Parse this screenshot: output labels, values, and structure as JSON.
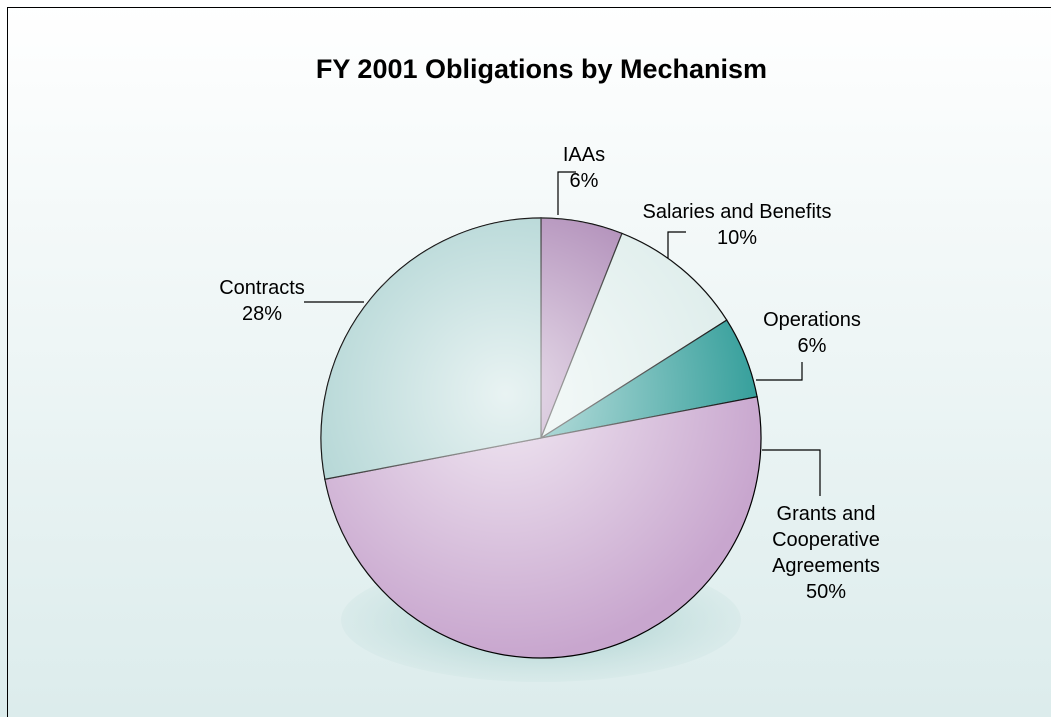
{
  "chart_data": {
    "type": "pie",
    "title": "FY 2001 Obligations by Mechanism",
    "categories": [
      "IAAs",
      "Salaries and Benefits",
      "Operations",
      "Grants and Cooperative Agreements",
      "Contracts"
    ],
    "values": [
      6,
      10,
      6,
      50,
      28
    ],
    "value_labels": [
      "6%",
      "10%",
      "6%",
      "50%",
      "28%"
    ],
    "colors": [
      "#a47cae",
      "#dcecea",
      "#2f9c98",
      "#c8a6ce",
      "#a6cfce"
    ]
  }
}
